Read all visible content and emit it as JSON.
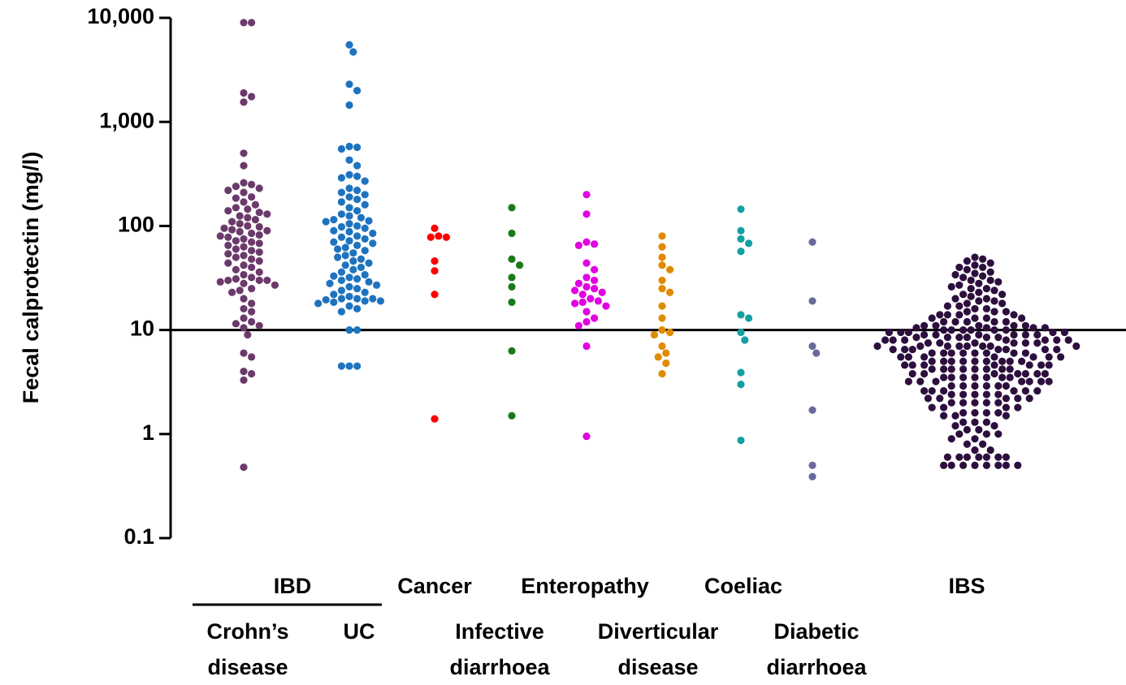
{
  "chart_data": {
    "type": "dotplot",
    "y_label": "Fecal calprotectin (mg/l)",
    "log_scale": true,
    "ylim": [
      0.1,
      10000
    ],
    "yticks": [
      0.1,
      1,
      10,
      100,
      {
        "value": 1000,
        "label": "1,000"
      },
      {
        "value": 10000,
        "label": "10,000"
      }
    ],
    "reference_line": 10,
    "group_label": "IBD",
    "series": [
      {
        "name": "Crohn’s disease",
        "color": "#6b3a6b",
        "values": [
          9000,
          9000,
          1900,
          1750,
          1550,
          500,
          380,
          260,
          250,
          240,
          230,
          220,
          210,
          190,
          185,
          170,
          160,
          150,
          145,
          140,
          135,
          130,
          125,
          120,
          115,
          110,
          105,
          100,
          98,
          95,
          92,
          90,
          88,
          85,
          82,
          80,
          78,
          75,
          72,
          70,
          68,
          65,
          63,
          60,
          58,
          56,
          54,
          52,
          50,
          48,
          46,
          44,
          42,
          40,
          38,
          36,
          34,
          32,
          31,
          30,
          30,
          30,
          29,
          28,
          27,
          25,
          24,
          23,
          20,
          18,
          16,
          15,
          13,
          12,
          11.5,
          11,
          10.5,
          9,
          6,
          5.5,
          4,
          3.8,
          3.3,
          0.48
        ]
      },
      {
        "name": "UC",
        "color": "#1e73be",
        "values": [
          5500,
          4700,
          2300,
          2000,
          1450,
          580,
          570,
          550,
          430,
          380,
          310,
          300,
          290,
          270,
          230,
          220,
          210,
          200,
          190,
          180,
          170,
          160,
          150,
          140,
          130,
          125,
          120,
          115,
          112,
          110,
          105,
          100,
          98,
          95,
          90,
          88,
          85,
          80,
          78,
          75,
          72,
          70,
          68,
          65,
          62,
          60,
          58,
          55,
          52,
          50,
          48,
          46,
          44,
          42,
          40,
          38,
          36,
          34,
          33,
          32,
          31,
          30,
          29,
          28,
          27,
          26,
          25,
          24,
          23,
          22,
          21,
          20,
          20,
          20,
          19.5,
          19,
          19,
          18.5,
          18,
          17,
          16,
          15,
          10,
          10,
          4.5,
          4.5,
          4.5
        ]
      },
      {
        "name": "Cancer",
        "color": "#ff0000",
        "values": [
          95,
          80,
          78,
          78,
          46,
          37,
          22,
          1.4
        ]
      },
      {
        "name": "Infective diarrhoea",
        "color": "#1a7a1a",
        "values": [
          150,
          85,
          48,
          42,
          32,
          26,
          18.5,
          6.3,
          1.5
        ]
      },
      {
        "name": "Enteropathy",
        "color": "#e100e1",
        "values": [
          200,
          130,
          70,
          67,
          65,
          44,
          38,
          32,
          30,
          28,
          26,
          25,
          24,
          23,
          22,
          20,
          19,
          18.5,
          18,
          17,
          15,
          13,
          12,
          11,
          7,
          0.95
        ]
      },
      {
        "name": "Diverticular disease",
        "color": "#e08a00",
        "values": [
          80,
          63,
          50,
          42,
          38,
          30,
          25,
          23,
          17,
          13,
          10,
          9.5,
          9,
          7,
          6,
          5.5,
          4.8,
          3.8
        ]
      },
      {
        "name": "Coeliac",
        "color": "#14a0a0",
        "values": [
          145,
          90,
          75,
          68,
          57,
          14,
          13,
          9.5,
          8,
          3.9,
          3,
          0.87
        ]
      },
      {
        "name": "Diabetic diarrhoea",
        "color": "#6a6a9a",
        "values": [
          70,
          19,
          7,
          6,
          1.7,
          0.5,
          0.39
        ]
      },
      {
        "name": "IBS",
        "color": "#2d0f3e",
        "values": [
          50,
          48,
          46,
          44,
          42,
          40,
          40,
          38,
          36,
          35,
          34,
          33,
          32,
          30,
          30,
          29,
          28,
          27,
          26,
          25,
          25,
          24,
          23,
          22,
          22,
          21,
          20,
          20,
          19,
          19,
          18,
          18,
          17,
          17,
          16,
          16,
          15,
          15,
          15,
          14,
          14,
          14,
          14,
          13,
          13,
          13,
          13,
          12,
          12,
          12,
          12,
          12,
          11,
          11,
          11,
          11,
          11,
          10.5,
          10.5,
          10.5,
          10.5,
          10,
          10,
          10,
          10,
          10,
          10,
          9.5,
          9.5,
          9.5,
          9.5,
          9.5,
          9,
          9,
          9,
          9,
          9,
          9,
          8.5,
          8.5,
          8.5,
          8.5,
          8.5,
          8.5,
          8,
          8,
          8,
          8,
          8,
          8,
          8,
          7.5,
          7.5,
          7.5,
          7.5,
          7.5,
          7.5,
          7,
          7,
          7,
          7,
          7,
          7,
          7,
          7,
          6.5,
          6.5,
          6.5,
          6.5,
          6.5,
          6.5,
          6.5,
          6,
          6,
          6,
          6,
          6,
          6,
          6,
          6,
          5.5,
          5.5,
          5.5,
          5.5,
          5.5,
          5.5,
          5.5,
          5,
          5,
          5,
          5,
          5,
          5,
          5,
          5,
          5,
          4.6,
          4.6,
          4.6,
          4.6,
          4.6,
          4.6,
          4.6,
          4.2,
          4.2,
          4.2,
          4.2,
          4.2,
          4.2,
          4.2,
          4.2,
          3.8,
          3.8,
          3.8,
          3.8,
          3.8,
          3.8,
          3.8,
          3.5,
          3.5,
          3.5,
          3.5,
          3.5,
          3.5,
          3.5,
          3.2,
          3.2,
          3.2,
          3.2,
          3.2,
          3.2,
          3.2,
          2.9,
          2.9,
          2.9,
          2.9,
          2.9,
          2.9,
          2.6,
          2.6,
          2.6,
          2.6,
          2.6,
          2.6,
          2.4,
          2.4,
          2.4,
          2.4,
          2.4,
          2.2,
          2.2,
          2.2,
          2.2,
          2.2,
          2,
          2,
          2,
          2,
          2,
          1.8,
          1.8,
          1.8,
          1.8,
          1.6,
          1.6,
          1.6,
          1.6,
          1.5,
          1.5,
          1.5,
          1.3,
          1.3,
          1.3,
          1.2,
          1.2,
          1.1,
          1.1,
          1,
          1,
          1,
          0.9,
          0.9,
          0.8,
          0.8,
          0.7,
          0.7,
          0.6,
          0.6,
          0.6,
          0.6,
          0.6,
          0.6,
          0.6,
          0.5,
          0.5,
          0.5,
          0.5,
          0.5,
          0.5,
          0.5,
          0.5
        ]
      }
    ]
  }
}
